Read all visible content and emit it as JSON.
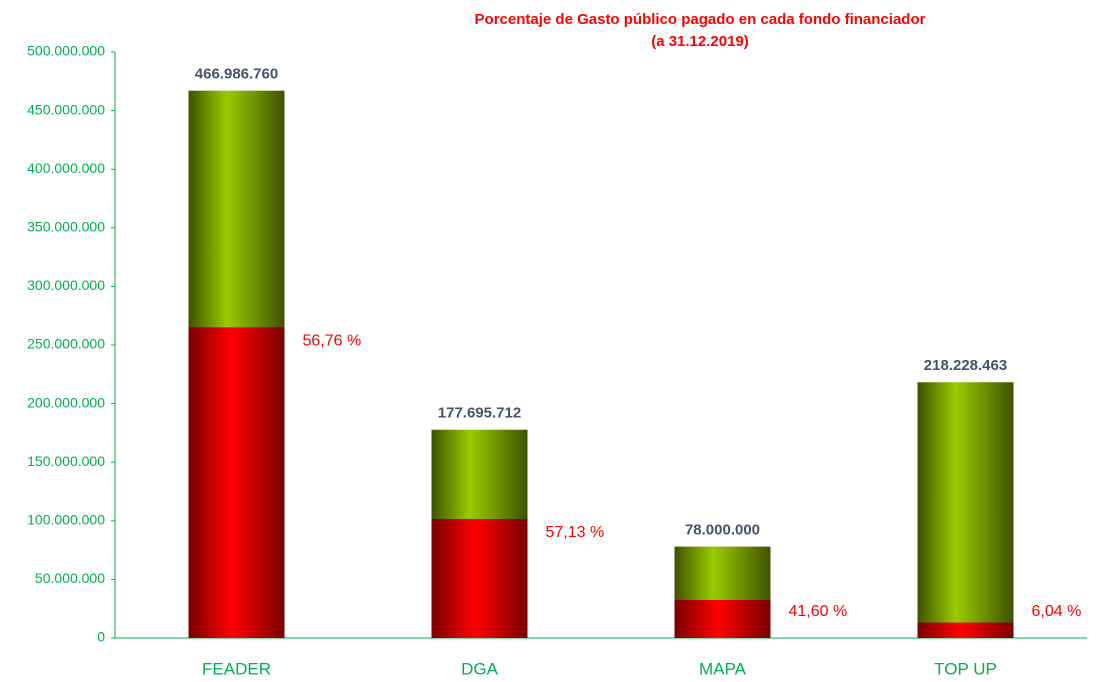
{
  "chart_data": {
    "type": "bar",
    "title": "Porcentaje de Gasto público pagado en cada fondo financiador",
    "subtitle": "(a 31.12.2019)",
    "categories": [
      "FEADER",
      "DGA",
      "MAPA",
      "TOP UP"
    ],
    "values": [
      466986760,
      177695712,
      78000000,
      218228463
    ],
    "value_labels": [
      "466.986.760",
      "177.695.712",
      "78.000.000",
      "218.228.463"
    ],
    "percentages": [
      56.76,
      57.13,
      41.6,
      6.04
    ],
    "percentage_labels": [
      "56,76 %",
      "57,13 %",
      "41,60 %",
      "6,04 %"
    ],
    "color": "#99cc00",
    "paid_color": "#ff0000",
    "ylim": [
      0,
      500000000
    ],
    "yticks": [
      0,
      {
        "value": 50000000,
        "label": "50.000.000"
      },
      {
        "value": 100000000,
        "label": "100.000.000"
      },
      {
        "value": 150000000,
        "label": "150.000.000"
      },
      {
        "value": 200000000,
        "label": "200.000.000"
      },
      {
        "value": 250000000,
        "label": "250.000.000"
      },
      {
        "value": 300000000,
        "label": "300.000.000"
      },
      {
        "value": 350000000,
        "label": "350.000.000"
      },
      {
        "value": 400000000,
        "label": "400.000.000"
      },
      {
        "value": 450000000,
        "label": "450.000.000"
      },
      {
        "value": 500000000,
        "label": "500.000.000"
      }
    ],
    "grid": false
  }
}
